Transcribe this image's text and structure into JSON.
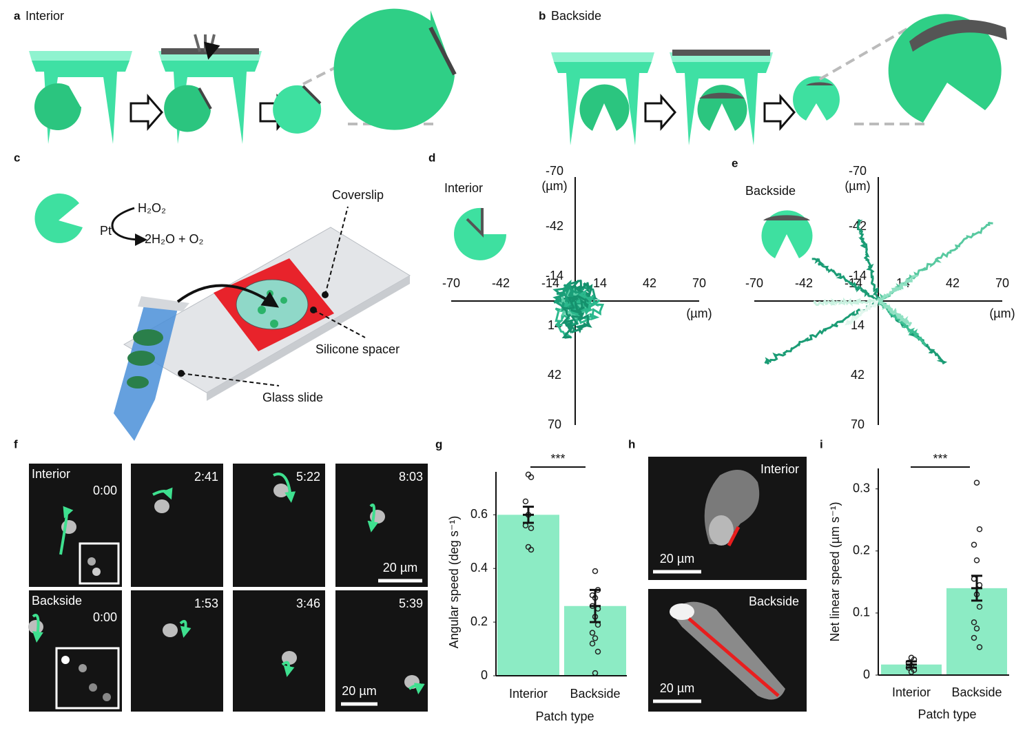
{
  "panels": {
    "a": {
      "label": "a",
      "title": "Interior"
    },
    "b": {
      "label": "b",
      "title": "Backside"
    },
    "c": {
      "label": "c",
      "catalyst": "Pt",
      "reactant": "H₂O₂",
      "products": "2H₂O + O₂",
      "callouts": [
        "Coverslip",
        "Silicone spacer",
        "Glass slide"
      ]
    },
    "f": {
      "label": "f",
      "rows": [
        {
          "name": "Interior",
          "times": [
            "0:00",
            "2:41",
            "5:22",
            "8:03"
          ],
          "scale": "20 µm"
        },
        {
          "name": "Backside",
          "times": [
            "0:00",
            "1:53",
            "3:46",
            "5:39"
          ],
          "scale": "20 µm"
        }
      ]
    },
    "h": {
      "label": "h",
      "frames": [
        {
          "name": "Interior",
          "scale": "20 µm"
        },
        {
          "name": "Backside",
          "scale": "20 µm"
        }
      ]
    }
  },
  "chart_data": [
    {
      "type": "trajectory",
      "label": "d",
      "annotation": "Interior",
      "xlim": [
        -70,
        70
      ],
      "ylim": [
        -70,
        70
      ],
      "xticks": [
        -70,
        -42,
        -14,
        14,
        42,
        70
      ],
      "yticks": [
        -70,
        -42,
        -14,
        14,
        42,
        70
      ],
      "xlabel": "(µm)",
      "ylabel": "(µm)"
    },
    {
      "type": "trajectory",
      "label": "e",
      "annotation": "Backside",
      "xlim": [
        -70,
        70
      ],
      "ylim": [
        -70,
        70
      ],
      "xticks": [
        -70,
        -42,
        -14,
        14,
        42,
        70
      ],
      "yticks": [
        -70,
        -42,
        -14,
        14,
        42,
        70
      ],
      "xlabel": "(µm)",
      "ylabel": "(µm)"
    },
    {
      "type": "bar",
      "label": "g",
      "categories": [
        "Interior",
        "Backside"
      ],
      "values": [
        0.6,
        0.26
      ],
      "errors": [
        0.03,
        0.06
      ],
      "points": [
        [
          0.75,
          0.74,
          0.65,
          0.6,
          0.56,
          0.55,
          0.48,
          0.47
        ],
        [
          0.39,
          0.32,
          0.3,
          0.29,
          0.26,
          0.25,
          0.22,
          0.19,
          0.16,
          0.14,
          0.12,
          0.09,
          0.01
        ]
      ],
      "color": "#8cebc4",
      "ylim": [
        0,
        0.76
      ],
      "yticks": [
        0,
        0.2,
        0.4,
        0.6
      ],
      "xlabel": "Patch type",
      "ylabel": "Angular speed (deg s⁻¹)",
      "annotation": "***"
    },
    {
      "type": "bar",
      "label": "i",
      "categories": [
        "Interior",
        "Backside"
      ],
      "values": [
        0.017,
        0.14
      ],
      "errors": [
        0.005,
        0.02
      ],
      "points": [
        [
          0.028,
          0.025,
          0.02,
          0.015,
          0.012,
          0.008,
          0.005
        ],
        [
          0.31,
          0.235,
          0.21,
          0.185,
          0.155,
          0.145,
          0.13,
          0.11,
          0.085,
          0.075,
          0.06,
          0.045
        ]
      ],
      "color": "#8cebc4",
      "ylim": [
        0,
        0.333
      ],
      "yticks": [
        0,
        0.1,
        0.2,
        0.3
      ],
      "xlabel": "Patch type",
      "ylabel": "Net linear speed (µm s⁻¹)",
      "annotation": "***"
    }
  ]
}
